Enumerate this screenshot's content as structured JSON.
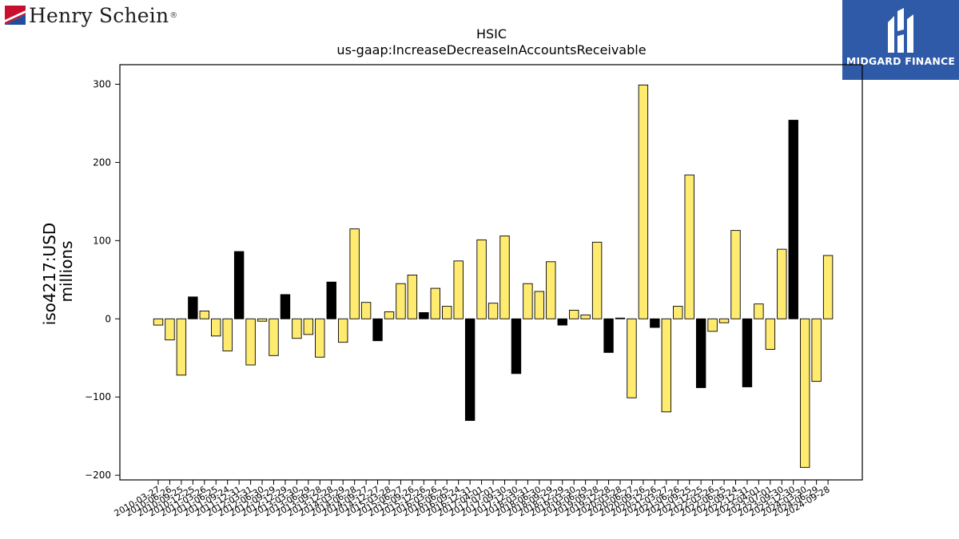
{
  "brand_left": {
    "name": "Henry Schein",
    "reg": "®",
    "colors": [
      "#c8102e",
      "#1f4e9c"
    ]
  },
  "brand_right": {
    "caption": "MIDGARD FINANCE",
    "background": "#2e5aa8"
  },
  "chart_data": {
    "type": "bar",
    "title": "HSIC",
    "subtitle": "us-gaap:IncreaseDecreaseInAccountsReceivable",
    "ylabel": "iso4217:USD",
    "ylabel2": "millions",
    "xlabel": "",
    "ylim": [
      -206,
      325
    ],
    "yticks": [
      -200,
      -100,
      0,
      100,
      200,
      300
    ],
    "grid": false,
    "colors": {
      "positive_fill": "#ffeb70",
      "highlight_fill": "#000000",
      "edge": "#000000"
    },
    "categories": [
      "2010-03-27",
      "2010-06-26",
      "2010-09-25",
      "2010-12-25",
      "2011-03-26",
      "2011-06-25",
      "2011-09-24",
      "2011-12-31",
      "2012-03-31",
      "2012-06-30",
      "2012-09-29",
      "2012-12-29",
      "2013-03-30",
      "2013-06-29",
      "2013-09-28",
      "2013-12-28",
      "2014-03-29",
      "2014-06-28",
      "2014-09-27",
      "2014-12-27",
      "2015-03-28",
      "2015-06-27",
      "2015-09-26",
      "2015-12-26",
      "2016-03-26",
      "2016-06-25",
      "2016-09-24",
      "2016-12-31",
      "2017-04-01",
      "2017-07-01",
      "2017-09-30",
      "2017-12-30",
      "2018-03-31",
      "2018-06-30",
      "2018-09-29",
      "2018-12-29",
      "2019-03-30",
      "2019-06-29",
      "2019-09-28",
      "2019-12-28",
      "2020-03-28",
      "2020-06-27",
      "2020-09-26",
      "2020-12-26",
      "2021-03-27",
      "2021-06-26",
      "2021-09-25",
      "2021-12-25",
      "2022-03-26",
      "2022-06-25",
      "2022-09-24",
      "2022-12-31",
      "2023-04-01",
      "2023-07-01",
      "2023-09-30",
      "2023-12-30",
      "2024-03-30",
      "2024-06-29",
      "2024-09-28"
    ],
    "values": [
      -8,
      -27,
      -72,
      28,
      10,
      -22,
      -41,
      86,
      -59,
      -3,
      -47,
      31,
      -25,
      -20,
      -49,
      47,
      -30,
      115,
      21,
      -28,
      9,
      45,
      56,
      8,
      39,
      16,
      74,
      -130,
      101,
      20,
      106,
      -70,
      45,
      35,
      73,
      -8,
      11,
      5,
      98,
      -43,
      1,
      -101,
      299,
      -11,
      -119,
      16,
      184,
      -88,
      -16,
      -5,
      113,
      -87,
      19,
      -39,
      89,
      254,
      -190,
      -80,
      81
    ],
    "highlight_index": [
      3,
      7,
      11,
      15,
      19,
      23,
      27,
      31,
      35,
      39,
      43,
      47,
      51,
      55
    ]
  }
}
